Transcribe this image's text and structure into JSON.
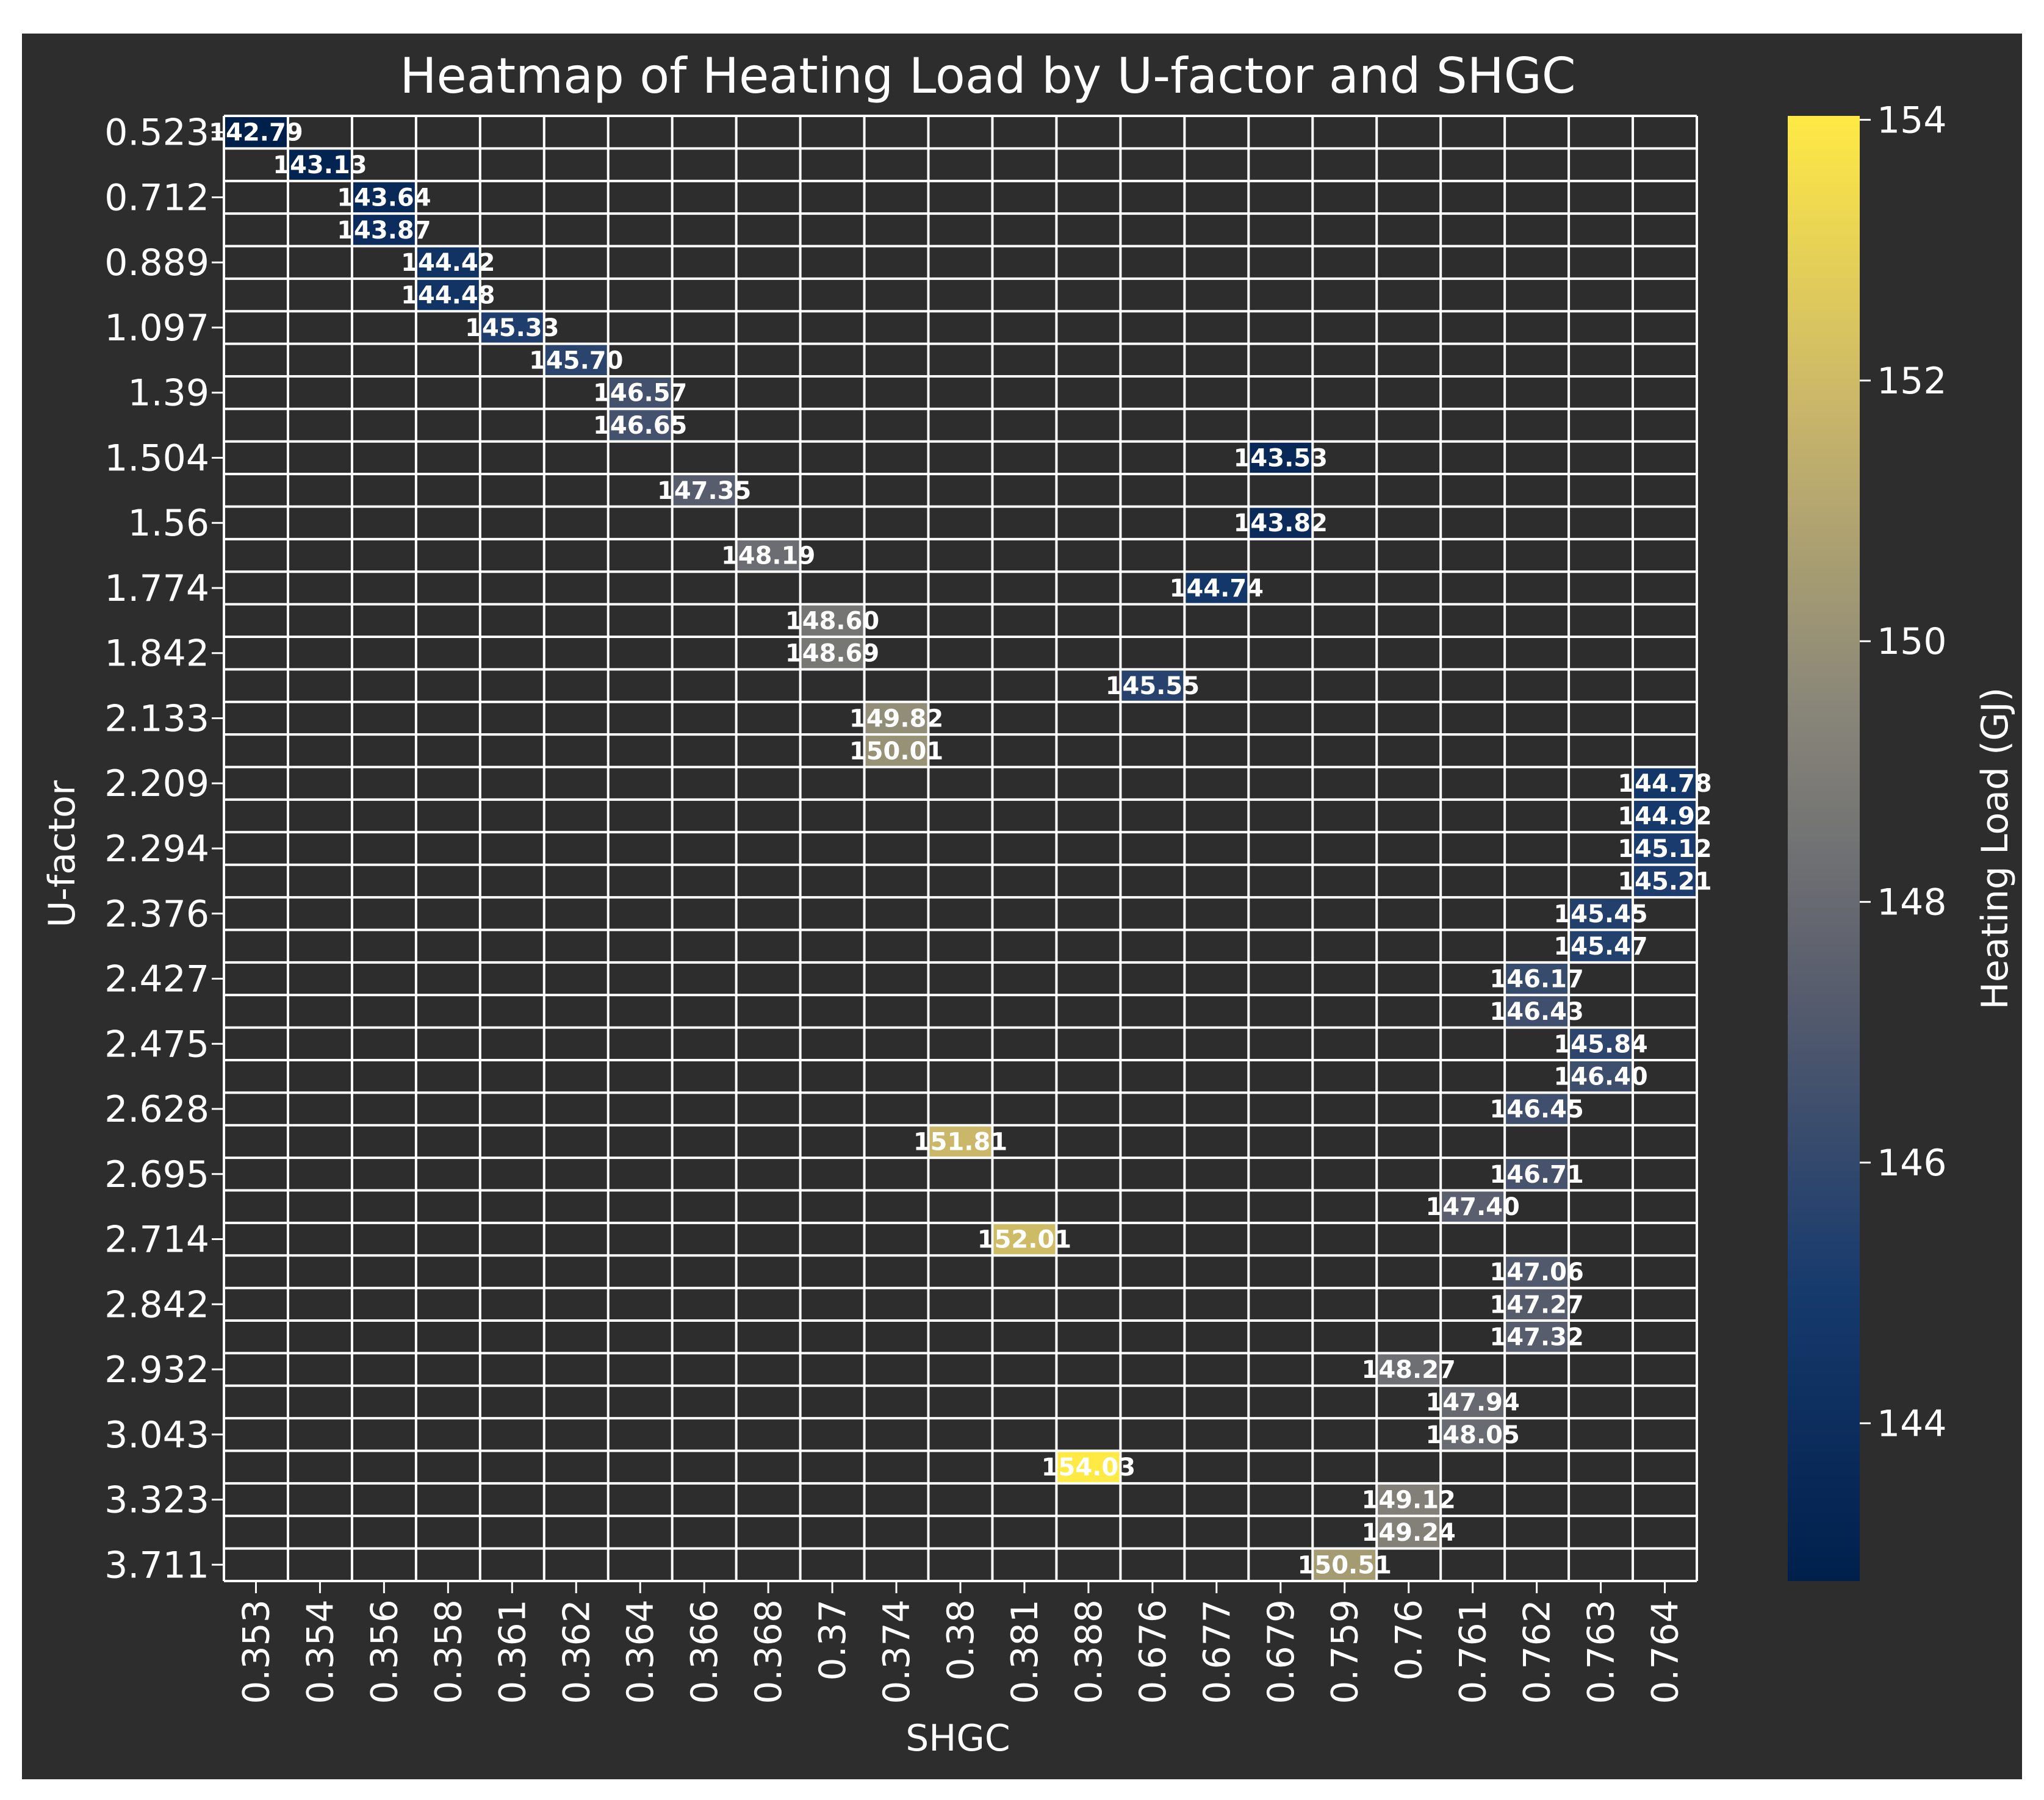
{
  "chart_data": {
    "type": "heatmap",
    "title": "Heatmap of Heating Load by U-factor and SHGC",
    "xlabel": "SHGC",
    "ylabel": "U-factor",
    "colorbar_label": "Heating Load (GJ)",
    "colorbar_ticks": [
      "144",
      "146",
      "148",
      "150",
      "152",
      "154"
    ],
    "color_range": [
      142.79,
      154.03
    ],
    "colors": {
      "background": "#2d2d2d",
      "low": "#00204c",
      "mid": "#7c7b78",
      "high": "#ffe945",
      "grid": "#ffffff",
      "text": "#ffffff"
    },
    "x_ticks": [
      "0.353",
      "0.354",
      "0.356",
      "0.358",
      "0.361",
      "0.362",
      "0.364",
      "0.366",
      "0.368",
      "0.37",
      "0.374",
      "0.38",
      "0.381",
      "0.388",
      "0.676",
      "0.677",
      "0.679",
      "0.759",
      "0.76",
      "0.761",
      "0.762",
      "0.763",
      "0.764"
    ],
    "y_ticks": [
      "0.523",
      "0.712",
      "0.889",
      "1.097",
      "1.39",
      "1.504",
      "1.56",
      "1.774",
      "1.842",
      "2.133",
      "2.209",
      "2.294",
      "2.376",
      "2.427",
      "2.475",
      "2.628",
      "2.695",
      "2.714",
      "2.842",
      "2.932",
      "3.043",
      "3.323",
      "3.711"
    ],
    "num_rows": 45,
    "num_cols": 23,
    "cells": [
      {
        "row": 0,
        "col": 0,
        "value": 142.79,
        "label": "142.79"
      },
      {
        "row": 1,
        "col": 1,
        "value": 143.13,
        "label": "143.13"
      },
      {
        "row": 2,
        "col": 2,
        "value": 143.64,
        "label": "143.64"
      },
      {
        "row": 3,
        "col": 2,
        "value": 143.87,
        "label": "143.87"
      },
      {
        "row": 4,
        "col": 3,
        "value": 144.42,
        "label": "144.42"
      },
      {
        "row": 5,
        "col": 3,
        "value": 144.48,
        "label": "144.48"
      },
      {
        "row": 6,
        "col": 4,
        "value": 145.33,
        "label": "145.33"
      },
      {
        "row": 7,
        "col": 5,
        "value": 145.7,
        "label": "145.70"
      },
      {
        "row": 8,
        "col": 6,
        "value": 146.57,
        "label": "146.57"
      },
      {
        "row": 9,
        "col": 6,
        "value": 146.65,
        "label": "146.65"
      },
      {
        "row": 10,
        "col": 16,
        "value": 143.53,
        "label": "143.53"
      },
      {
        "row": 11,
        "col": 7,
        "value": 147.35,
        "label": "147.35"
      },
      {
        "row": 12,
        "col": 16,
        "value": 143.82,
        "label": "143.82"
      },
      {
        "row": 13,
        "col": 8,
        "value": 148.19,
        "label": "148.19"
      },
      {
        "row": 14,
        "col": 15,
        "value": 144.74,
        "label": "144.74"
      },
      {
        "row": 15,
        "col": 9,
        "value": 148.6,
        "label": "148.60"
      },
      {
        "row": 16,
        "col": 9,
        "value": 148.69,
        "label": "148.69"
      },
      {
        "row": 17,
        "col": 14,
        "value": 145.55,
        "label": "145.55"
      },
      {
        "row": 18,
        "col": 10,
        "value": 149.82,
        "label": "149.82"
      },
      {
        "row": 19,
        "col": 10,
        "value": 150.01,
        "label": "150.01"
      },
      {
        "row": 20,
        "col": 22,
        "value": 144.78,
        "label": "144.78"
      },
      {
        "row": 21,
        "col": 22,
        "value": 144.92,
        "label": "144.92"
      },
      {
        "row": 22,
        "col": 22,
        "value": 145.12,
        "label": "145.12"
      },
      {
        "row": 23,
        "col": 22,
        "value": 145.21,
        "label": "145.21"
      },
      {
        "row": 24,
        "col": 21,
        "value": 145.45,
        "label": "145.45"
      },
      {
        "row": 25,
        "col": 21,
        "value": 145.47,
        "label": "145.47"
      },
      {
        "row": 26,
        "col": 20,
        "value": 146.17,
        "label": "146.17"
      },
      {
        "row": 27,
        "col": 20,
        "value": 146.43,
        "label": "146.43"
      },
      {
        "row": 28,
        "col": 21,
        "value": 145.84,
        "label": "145.84"
      },
      {
        "row": 29,
        "col": 21,
        "value": 146.4,
        "label": "146.40"
      },
      {
        "row": 30,
        "col": 20,
        "value": 146.45,
        "label": "146.45"
      },
      {
        "row": 31,
        "col": 11,
        "value": 151.81,
        "label": "151.81"
      },
      {
        "row": 32,
        "col": 20,
        "value": 146.71,
        "label": "146.71"
      },
      {
        "row": 33,
        "col": 19,
        "value": 147.4,
        "label": "147.40"
      },
      {
        "row": 34,
        "col": 12,
        "value": 152.01,
        "label": "152.01"
      },
      {
        "row": 35,
        "col": 20,
        "value": 147.06,
        "label": "147.06"
      },
      {
        "row": 36,
        "col": 20,
        "value": 147.27,
        "label": "147.27"
      },
      {
        "row": 37,
        "col": 20,
        "value": 147.32,
        "label": "147.32"
      },
      {
        "row": 38,
        "col": 18,
        "value": 148.27,
        "label": "148.27"
      },
      {
        "row": 39,
        "col": 19,
        "value": 147.94,
        "label": "147.94"
      },
      {
        "row": 40,
        "col": 19,
        "value": 148.05,
        "label": "148.05"
      },
      {
        "row": 41,
        "col": 13,
        "value": 154.03,
        "label": "154.03"
      },
      {
        "row": 42,
        "col": 18,
        "value": 149.12,
        "label": "149.12"
      },
      {
        "row": 43,
        "col": 18,
        "value": 149.24,
        "label": "149.24"
      },
      {
        "row": 44,
        "col": 17,
        "value": 150.51,
        "label": "150.51"
      }
    ]
  }
}
